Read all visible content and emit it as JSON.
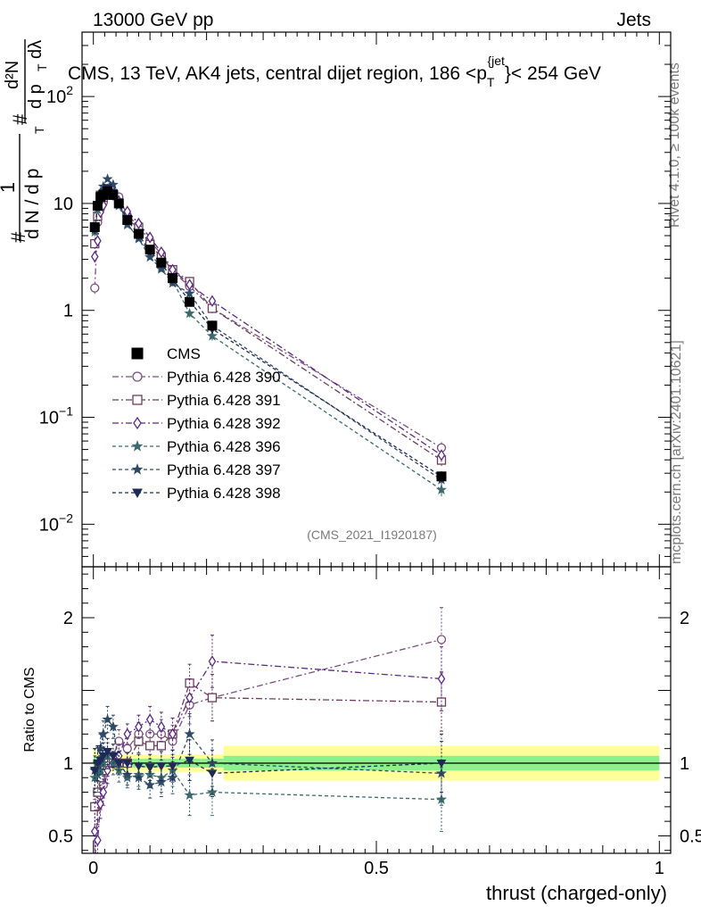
{
  "header": {
    "left": "13000 GeV pp",
    "right": "Jets"
  },
  "side": {
    "rivet": "Rivet 4.1.0, ≥ 100k events",
    "mcplots": "mcplots.cern.ch [arXiv:2401.10621]"
  },
  "chart_data": {
    "type": "line",
    "title": "CMS, 13 TeV, AK4 jets, central dijet region, 186 <p_T^{jet}< 254 GeV",
    "title_parts": {
      "pre": "CMS, 13 TeV, AK4 jets, central dijet region, 186 <p",
      "sub": "T",
      "sup": "{jet",
      "post": "}< 254 GeV"
    },
    "analysis_id": "(CMS_2021_I1920187)",
    "xlabel": "thrust (charged-only)",
    "ylabel_main": {
      "hash": "#",
      "frac_num": "1",
      "frac_den": "d N / d p",
      "den_sub": "T",
      "hash2": "#",
      "d2N": "d²N",
      "dpT": "d p",
      "dpT_sub": "T",
      "dlambda": "dλ"
    },
    "ylabel_ratio": "Ratio to CMS",
    "xlim": [
      -0.02,
      1.02
    ],
    "ylim_main": [
      0.004,
      400
    ],
    "ylim_ratio": [
      0.38,
      2.35
    ],
    "yscale_main": "log",
    "x_ticks": [
      {
        "v": 0,
        "label": "0"
      },
      {
        "v": 0.5,
        "label": "0.5"
      },
      {
        "v": 1,
        "label": "1"
      }
    ],
    "y_ticks_main": [
      {
        "v": 0.01,
        "base": "10",
        "exp": "−2"
      },
      {
        "v": 0.1,
        "base": "10",
        "exp": "−1"
      },
      {
        "v": 1,
        "base": "1",
        "exp": ""
      },
      {
        "v": 10,
        "base": "10",
        "exp": ""
      },
      {
        "v": 100,
        "base": "10",
        "exp": "2"
      }
    ],
    "y_ticks_ratio": [
      {
        "v": 0.5,
        "label": "0.5"
      },
      {
        "v": 1,
        "label": "1"
      },
      {
        "v": 2,
        "label": "2"
      }
    ],
    "bin_edges": [
      0,
      0.005,
      0.01,
      0.015,
      0.02,
      0.03,
      0.04,
      0.05,
      0.07,
      0.09,
      0.11,
      0.13,
      0.15,
      0.19,
      0.23,
      1.0
    ],
    "data": {
      "name": "CMS",
      "x": [
        0.0025,
        0.0075,
        0.0125,
        0.0175,
        0.025,
        0.035,
        0.045,
        0.06,
        0.08,
        0.1,
        0.12,
        0.14,
        0.17,
        0.21,
        0.615
      ],
      "y": [
        6.0,
        9.5,
        11.5,
        12.0,
        13.0,
        12.0,
        10.0,
        7.0,
        5.2,
        3.7,
        2.8,
        2.0,
        1.2,
        0.72,
        0.028
      ],
      "band_stat": [
        0.04,
        0.03,
        0.03,
        0.03,
        0.03,
        0.03,
        0.03,
        0.03,
        0.03,
        0.03,
        0.03,
        0.03,
        0.03,
        0.03,
        0.05
      ],
      "band_total": [
        0.1,
        0.08,
        0.06,
        0.06,
        0.06,
        0.06,
        0.06,
        0.06,
        0.06,
        0.06,
        0.06,
        0.06,
        0.06,
        0.06,
        0.12
      ]
    },
    "series": [
      {
        "name": "Pythia 6.428 390",
        "color": "#7d4e7f",
        "dash": "7,3,2,3",
        "marker": "circle",
        "ratio": [
          0.27,
          0.7,
          0.78,
          0.85,
          1.0,
          1.05,
          1.15,
          1.1,
          1.2,
          1.2,
          1.2,
          1.15,
          1.4,
          1.45,
          1.85
        ],
        "ratio_err": [
          0.2,
          0.12,
          0.1,
          0.09,
          0.09,
          0.08,
          0.08,
          0.07,
          0.08,
          0.09,
          0.1,
          0.11,
          0.13,
          0.16,
          0.22
        ]
      },
      {
        "name": "Pythia 6.428 391",
        "color": "#6e3c5a",
        "dash": "7,3,2,3",
        "marker": "square",
        "ratio": [
          0.7,
          0.8,
          0.9,
          0.95,
          1.0,
          1.0,
          1.0,
          1.0,
          1.15,
          1.12,
          1.12,
          1.2,
          1.55,
          1.45,
          1.42
        ],
        "ratio_err": [
          0.18,
          0.12,
          0.1,
          0.09,
          0.09,
          0.08,
          0.08,
          0.07,
          0.08,
          0.09,
          0.1,
          0.11,
          0.13,
          0.16,
          0.2
        ]
      },
      {
        "name": "Pythia 6.428 392",
        "color": "#5a2a86",
        "dash": "7,3,2,3",
        "marker": "diamond",
        "ratio": [
          0.53,
          0.47,
          0.72,
          0.8,
          0.95,
          1.0,
          1.05,
          1.2,
          1.25,
          1.3,
          1.25,
          1.2,
          1.45,
          1.7,
          1.58
        ],
        "ratio_err": [
          0.2,
          0.14,
          0.1,
          0.09,
          0.09,
          0.08,
          0.08,
          0.07,
          0.08,
          0.09,
          0.1,
          0.11,
          0.13,
          0.18,
          0.22
        ]
      },
      {
        "name": "Pythia 6.428 396",
        "color": "#3a6a6e",
        "dash": "4,3",
        "marker": "star",
        "ratio": [
          0.9,
          0.92,
          0.95,
          1.0,
          1.05,
          1.0,
          0.95,
          0.9,
          0.92,
          0.92,
          0.9,
          0.95,
          0.78,
          0.8,
          0.75
        ],
        "ratio_err": [
          0.15,
          0.12,
          0.1,
          0.09,
          0.09,
          0.08,
          0.08,
          0.07,
          0.08,
          0.09,
          0.1,
          0.11,
          0.14,
          0.16,
          0.22
        ]
      },
      {
        "name": "Pythia 6.428 397",
        "color": "#2f4a66",
        "dash": "4,3",
        "marker": "star",
        "ratio": [
          0.95,
          1.0,
          1.1,
          1.2,
          1.3,
          1.25,
          1.0,
          0.92,
          0.9,
          0.85,
          0.87,
          0.9,
          1.2,
          1.0,
          0.93
        ],
        "ratio_err": [
          0.15,
          0.12,
          0.1,
          0.09,
          0.09,
          0.08,
          0.08,
          0.07,
          0.08,
          0.09,
          0.1,
          0.11,
          0.14,
          0.16,
          0.22
        ]
      },
      {
        "name": "Pythia 6.428 398",
        "color": "#1d2a55",
        "dash": "4,3",
        "marker": "triangle",
        "ratio": [
          0.95,
          1.0,
          1.02,
          1.05,
          1.08,
          1.05,
          1.0,
          1.0,
          0.98,
          0.97,
          0.98,
          0.98,
          1.02,
          0.93,
          1.0
        ],
        "ratio_err": [
          0.15,
          0.12,
          0.1,
          0.09,
          0.09,
          0.08,
          0.08,
          0.07,
          0.08,
          0.09,
          0.1,
          0.11,
          0.14,
          0.16,
          0.2
        ]
      }
    ]
  }
}
